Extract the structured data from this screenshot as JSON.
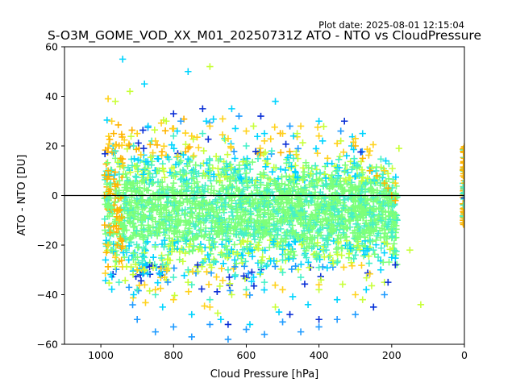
{
  "figure": {
    "plot_date": "Plot date: 2025-08-01 12:15:04"
  },
  "chart_data": {
    "type": "scatter",
    "title": "S-O3M_GOME_VOD_XX_M01_20250731Z ATO - NTO vs CloudPressure",
    "xlabel": "Cloud Pressure [hPa]",
    "ylabel": "ATO - NTO [DU]",
    "xlim": [
      1100,
      0
    ],
    "ylim": [
      -60,
      60
    ],
    "x_inverted": true,
    "xticks": [
      1000,
      800,
      600,
      400,
      200,
      0
    ],
    "yticks": [
      -60,
      -40,
      -20,
      0,
      20,
      40,
      60
    ],
    "grid": false,
    "legend": "none",
    "marker": "+",
    "reference_line": {
      "y": 0,
      "color": "#000000"
    },
    "colors": [
      "#1f9bff",
      "#00d4ff",
      "#45f0c8",
      "#7dff7a",
      "#c8ff3a",
      "#ffd21e",
      "#ffb400",
      "#0a2fd6"
    ],
    "series": [
      {
        "color": "#7dff7a",
        "x": [
          970,
          950,
          920,
          900,
          870,
          850,
          820,
          800,
          780,
          750,
          720,
          700,
          680,
          650,
          620,
          600,
          580,
          550,
          520,
          500,
          480,
          450,
          420,
          400,
          380,
          350,
          320,
          300,
          280,
          250,
          230,
          210,
          190,
          960,
          900,
          840,
          780,
          720,
          660,
          600,
          540,
          480,
          420,
          360,
          300,
          240
        ],
        "y": [
          -5,
          2,
          -8,
          5,
          -12,
          0,
          -6,
          8,
          -10,
          3,
          -4,
          10,
          -7,
          1,
          -9,
          6,
          -3,
          -11,
          4,
          -6,
          2,
          -8,
          5,
          -4,
          -10,
          0,
          -6,
          -2,
          -8,
          1,
          -5,
          -3,
          -1,
          15,
          12,
          10,
          14,
          8,
          11,
          9,
          7,
          6,
          5,
          4,
          3,
          2
        ]
      },
      {
        "color": "#45f0c8",
        "x": [
          980,
          960,
          930,
          910,
          880,
          860,
          830,
          800,
          760,
          720,
          690,
          660,
          630,
          600,
          560,
          530,
          500,
          470,
          440,
          410,
          380,
          350,
          320,
          290,
          260,
          230,
          200,
          185,
          950,
          900,
          850,
          800,
          750,
          700,
          650,
          600,
          550,
          500,
          450,
          400,
          350,
          300,
          250
        ],
        "y": [
          -15,
          18,
          -22,
          20,
          -25,
          22,
          -28,
          24,
          -30,
          25,
          -27,
          23,
          -32,
          20,
          -29,
          18,
          -26,
          15,
          -24,
          12,
          -22,
          10,
          -20,
          8,
          -18,
          5,
          -15,
          -10,
          -35,
          -38,
          -40,
          -33,
          -36,
          -42,
          -30,
          -38,
          -35,
          -31,
          -33,
          -29,
          -27,
          -24,
          -22
        ]
      },
      {
        "color": "#00d4ff",
        "x": [
          940,
          910,
          870,
          830,
          790,
          750,
          710,
          670,
          630,
          590,
          550,
          510,
          470,
          430,
          390,
          350,
          310,
          270,
          230,
          200,
          880,
          760,
          640,
          520,
          400,
          280
        ],
        "y": [
          55,
          -40,
          28,
          -45,
          26,
          -48,
          30,
          -50,
          27,
          -52,
          25,
          -47,
          24,
          -44,
          22,
          -42,
          20,
          -38,
          -30,
          -25,
          45,
          50,
          35,
          38,
          30,
          25
        ]
      },
      {
        "color": "#1f9bff",
        "x": [
          900,
          850,
          800,
          750,
          700,
          650,
          600,
          550,
          500,
          450,
          400,
          350,
          300,
          250,
          220,
          780,
          620,
          480,
          340
        ],
        "y": [
          -50,
          -55,
          -53,
          -57,
          -52,
          -58,
          -54,
          -56,
          -51,
          -55,
          -53,
          -50,
          -48,
          -45,
          -40,
          30,
          32,
          28,
          26
        ]
      },
      {
        "color": "#c8ff3a",
        "x": [
          960,
          920,
          880,
          820,
          760,
          700,
          640,
          580,
          520,
          460,
          400,
          340,
          280,
          220,
          180,
          150,
          120
        ],
        "y": [
          38,
          42,
          -30,
          30,
          -35,
          52,
          -40,
          28,
          -45,
          25,
          -38,
          22,
          -42,
          -35,
          19,
          -22,
          -44
        ]
      },
      {
        "color": "#ffd21e",
        "x": [
          980,
          970,
          960,
          950,
          900,
          850,
          800,
          750,
          700,
          650,
          600,
          550,
          500,
          450,
          400,
          350,
          300,
          260,
          220,
          190,
          980,
          960,
          940,
          900,
          850,
          800,
          700,
          600,
          500,
          400,
          300
        ],
        "y": [
          39,
          30,
          20,
          -10,
          25,
          22,
          27,
          24,
          28,
          23,
          26,
          22,
          25,
          28,
          24,
          21,
          23,
          18,
          10,
          5,
          -20,
          -25,
          12,
          -30,
          -38,
          -42,
          -45,
          -40,
          -38,
          -36,
          -40
        ]
      },
      {
        "color": "#ffb400",
        "x": [
          990,
          980,
          975,
          965,
          955,
          945,
          300,
          280,
          260,
          240,
          220,
          210,
          200,
          190,
          0,
          0,
          0
        ],
        "y": [
          0,
          10,
          -15,
          25,
          -20,
          15,
          20,
          15,
          10,
          8,
          5,
          3,
          0,
          -2,
          10,
          15,
          5
        ]
      },
      {
        "color": "#0a2fd6",
        "x": [
          800,
          720,
          650,
          560,
          480,
          400,
          330,
          250,
          210,
          190,
          0
        ],
        "y": [
          33,
          35,
          -52,
          32,
          -48,
          -50,
          30,
          -45,
          -35,
          -28,
          -1
        ]
      }
    ]
  }
}
